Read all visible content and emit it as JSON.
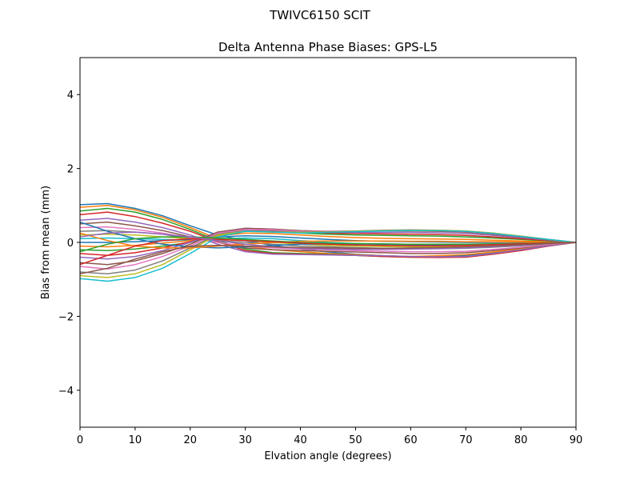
{
  "chart_data": {
    "type": "line",
    "suptitle": "TWIVC6150        SCIT",
    "title": "Delta Antenna Phase Biases: GPS-L5",
    "xlabel": "Elvation angle (degrees)",
    "ylabel": "Bias from mean (mm)",
    "xlim": [
      0,
      90
    ],
    "ylim": [
      -5,
      5
    ],
    "xticks": [
      0,
      10,
      20,
      30,
      40,
      50,
      60,
      70,
      80,
      90
    ],
    "yticks": [
      -4,
      -2,
      0,
      2,
      4
    ],
    "x": [
      0,
      5,
      10,
      15,
      20,
      25,
      30,
      35,
      40,
      45,
      50,
      55,
      60,
      65,
      70,
      75,
      80,
      85,
      90
    ],
    "series": [
      {
        "values": [
          1.02,
          1.05,
          0.92,
          0.72,
          0.45,
          0.2,
          0.05,
          -0.08,
          -0.18,
          -0.26,
          -0.32,
          -0.36,
          -0.38,
          -0.38,
          -0.35,
          -0.28,
          -0.18,
          -0.08,
          0.0
        ]
      },
      {
        "values": [
          0.95,
          1.0,
          0.88,
          0.68,
          0.4,
          0.1,
          -0.1,
          -0.2,
          -0.25,
          -0.3,
          -0.33,
          -0.36,
          -0.38,
          -0.36,
          -0.33,
          -0.26,
          -0.17,
          -0.08,
          0.0
        ]
      },
      {
        "values": [
          0.85,
          0.92,
          0.82,
          0.62,
          0.35,
          0.05,
          -0.18,
          -0.28,
          -0.3,
          -0.32,
          -0.35,
          -0.38,
          -0.4,
          -0.4,
          -0.38,
          -0.3,
          -0.2,
          -0.09,
          0.0
        ]
      },
      {
        "values": [
          0.75,
          0.82,
          0.7,
          0.52,
          0.3,
          0.02,
          -0.22,
          -0.3,
          -0.32,
          -0.33,
          -0.35,
          -0.38,
          -0.4,
          -0.41,
          -0.4,
          -0.32,
          -0.22,
          -0.1,
          0.0
        ]
      },
      {
        "values": [
          0.6,
          0.65,
          0.55,
          0.4,
          0.2,
          -0.05,
          -0.25,
          -0.32,
          -0.33,
          -0.34,
          -0.35,
          -0.36,
          -0.38,
          -0.39,
          -0.38,
          -0.3,
          -0.2,
          -0.09,
          0.0
        ]
      },
      {
        "values": [
          0.5,
          0.55,
          0.45,
          0.32,
          0.15,
          0.0,
          -0.15,
          -0.2,
          -0.22,
          -0.24,
          -0.26,
          -0.28,
          -0.3,
          -0.3,
          -0.28,
          -0.22,
          -0.15,
          -0.07,
          0.0
        ]
      },
      {
        "values": [
          0.4,
          0.42,
          0.35,
          0.25,
          0.12,
          0.0,
          -0.1,
          -0.15,
          -0.18,
          -0.2,
          -0.22,
          -0.24,
          -0.25,
          -0.25,
          -0.24,
          -0.19,
          -0.13,
          -0.06,
          0.0
        ]
      },
      {
        "values": [
          0.3,
          0.32,
          0.28,
          0.22,
          0.1,
          0.05,
          0.0,
          -0.05,
          -0.1,
          -0.12,
          -0.14,
          -0.16,
          -0.17,
          -0.17,
          -0.16,
          -0.13,
          -0.09,
          -0.04,
          0.0
        ]
      },
      {
        "values": [
          0.2,
          0.22,
          0.2,
          0.15,
          0.1,
          0.08,
          0.05,
          0.0,
          -0.05,
          -0.08,
          -0.1,
          -0.11,
          -0.12,
          -0.12,
          -0.11,
          -0.09,
          -0.06,
          -0.03,
          0.0
        ]
      },
      {
        "values": [
          0.1,
          0.12,
          0.1,
          0.08,
          0.06,
          0.1,
          0.12,
          0.1,
          0.05,
          0.0,
          -0.03,
          -0.05,
          -0.06,
          -0.06,
          -0.06,
          -0.05,
          -0.03,
          -0.01,
          0.0
        ]
      },
      {
        "values": [
          0.0,
          0.0,
          0.02,
          0.05,
          0.08,
          0.15,
          0.18,
          0.16,
          0.12,
          0.08,
          0.05,
          0.03,
          0.02,
          0.01,
          0.0,
          0.0,
          0.0,
          0.0,
          0.0
        ]
      },
      {
        "values": [
          -0.1,
          -0.12,
          -0.08,
          -0.02,
          0.05,
          0.18,
          0.25,
          0.24,
          0.2,
          0.16,
          0.13,
          0.11,
          0.1,
          0.09,
          0.08,
          0.06,
          0.04,
          0.02,
          0.0
        ]
      },
      {
        "values": [
          -0.2,
          -0.22,
          -0.18,
          -0.1,
          0.0,
          0.2,
          0.3,
          0.3,
          0.25,
          0.22,
          0.2,
          0.19,
          0.18,
          0.17,
          0.15,
          0.12,
          0.08,
          0.04,
          0.0
        ]
      },
      {
        "values": [
          -0.3,
          -0.35,
          -0.28,
          -0.15,
          0.02,
          0.25,
          0.35,
          0.33,
          0.28,
          0.25,
          0.24,
          0.23,
          0.22,
          0.21,
          0.19,
          0.15,
          0.1,
          0.05,
          0.0
        ]
      },
      {
        "values": [
          -0.4,
          -0.45,
          -0.38,
          -0.22,
          0.0,
          0.28,
          0.38,
          0.36,
          0.3,
          0.28,
          0.27,
          0.27,
          0.27,
          0.26,
          0.24,
          0.19,
          0.13,
          0.06,
          0.0
        ]
      },
      {
        "values": [
          -0.55,
          -0.6,
          -0.5,
          -0.3,
          -0.05,
          0.28,
          0.38,
          0.36,
          0.32,
          0.3,
          0.3,
          0.31,
          0.31,
          0.3,
          0.28,
          0.22,
          0.15,
          0.07,
          0.0
        ]
      },
      {
        "values": [
          -0.65,
          -0.72,
          -0.6,
          -0.38,
          -0.1,
          0.25,
          0.35,
          0.34,
          0.3,
          0.3,
          0.31,
          0.32,
          0.33,
          0.32,
          0.3,
          0.24,
          0.16,
          0.08,
          0.0
        ]
      },
      {
        "values": [
          -0.8,
          -0.85,
          -0.75,
          -0.5,
          -0.15,
          0.22,
          0.32,
          0.3,
          0.28,
          0.29,
          0.31,
          0.33,
          0.34,
          0.33,
          0.31,
          0.25,
          0.17,
          0.08,
          0.0
        ]
      },
      {
        "values": [
          -0.9,
          -0.95,
          -0.85,
          -0.6,
          -0.2,
          0.2,
          0.3,
          0.28,
          0.27,
          0.28,
          0.3,
          0.32,
          0.33,
          0.33,
          0.31,
          0.25,
          0.17,
          0.08,
          0.0
        ]
      },
      {
        "values": [
          -0.98,
          -1.05,
          -0.95,
          -0.7,
          -0.3,
          0.15,
          0.3,
          0.28,
          0.25,
          0.27,
          0.29,
          0.31,
          0.32,
          0.32,
          0.3,
          0.24,
          0.16,
          0.08,
          0.0
        ]
      },
      {
        "values": [
          0.55,
          0.3,
          0.1,
          -0.05,
          -0.12,
          -0.15,
          -0.12,
          -0.08,
          -0.05,
          -0.04,
          -0.04,
          -0.05,
          -0.06,
          -0.06,
          -0.06,
          -0.05,
          -0.03,
          -0.01,
          0.0
        ]
      },
      {
        "values": [
          0.25,
          0.05,
          -0.1,
          -0.15,
          -0.15,
          -0.1,
          -0.05,
          0.0,
          0.03,
          0.04,
          0.04,
          0.04,
          0.03,
          0.03,
          0.02,
          0.02,
          0.01,
          0.0,
          0.0
        ]
      },
      {
        "values": [
          -0.25,
          -0.05,
          0.1,
          0.15,
          0.15,
          0.12,
          0.08,
          0.04,
          0.0,
          -0.02,
          -0.03,
          -0.04,
          -0.05,
          -0.05,
          -0.05,
          -0.04,
          -0.03,
          -0.01,
          0.0
        ]
      },
      {
        "values": [
          -0.6,
          -0.35,
          -0.1,
          0.05,
          0.1,
          0.08,
          0.05,
          0.02,
          -0.02,
          -0.05,
          -0.07,
          -0.08,
          -0.09,
          -0.09,
          -0.08,
          -0.06,
          -0.04,
          -0.02,
          0.0
        ]
      },
      {
        "values": [
          0.15,
          0.25,
          0.28,
          0.22,
          0.15,
          0.05,
          -0.05,
          -0.12,
          -0.16,
          -0.18,
          -0.19,
          -0.19,
          -0.18,
          -0.17,
          -0.15,
          -0.11,
          -0.07,
          -0.03,
          0.0
        ]
      },
      {
        "values": [
          -0.85,
          -0.7,
          -0.45,
          -0.25,
          -0.1,
          -0.08,
          -0.1,
          -0.12,
          -0.14,
          -0.15,
          -0.16,
          -0.16,
          -0.15,
          -0.14,
          -0.12,
          -0.09,
          -0.06,
          -0.03,
          0.0
        ]
      }
    ]
  }
}
